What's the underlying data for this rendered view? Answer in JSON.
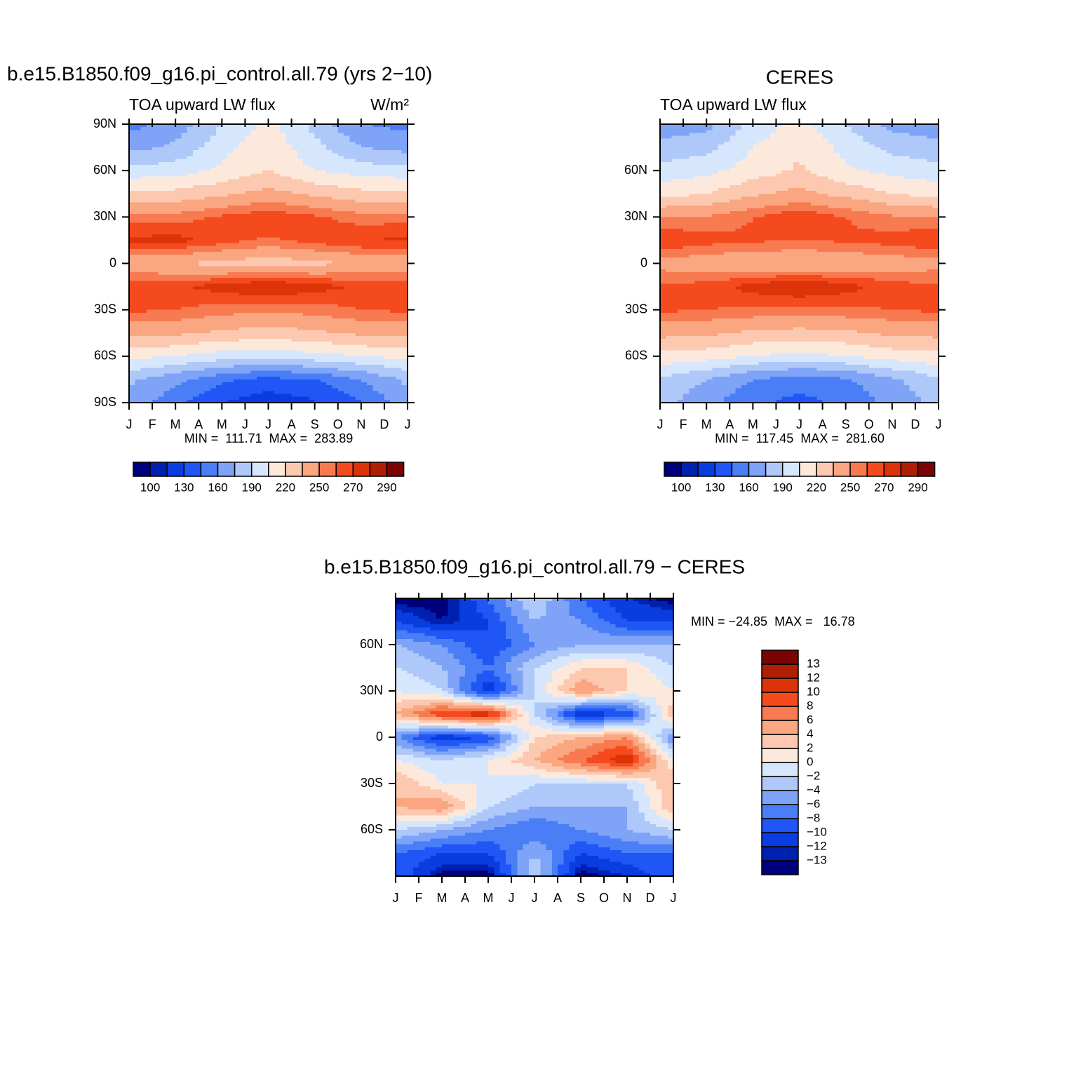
{
  "chart_data": [
    {
      "type": "contour",
      "title": "b.e15.B1850.f09_g16.pi_control.all.79 (yrs 2−10)",
      "subtitle": "TOA upward LW flux",
      "units": "W/m²",
      "stats": "MIN =  111.71  MAX =  283.89",
      "x": [
        0,
        2,
        4,
        6,
        8,
        10,
        12
      ],
      "xlim": [
        0,
        12
      ],
      "xticks": [
        {
          "value": 0,
          "label": "J"
        },
        {
          "value": 1,
          "label": "F"
        },
        {
          "value": 2,
          "label": "M"
        },
        {
          "value": 3,
          "label": "A"
        },
        {
          "value": 4,
          "label": "M"
        },
        {
          "value": 5,
          "label": "J"
        },
        {
          "value": 6,
          "label": "J"
        },
        {
          "value": 7,
          "label": "A"
        },
        {
          "value": 8,
          "label": "S"
        },
        {
          "value": 9,
          "label": "O"
        },
        {
          "value": 10,
          "label": "N"
        },
        {
          "value": 11,
          "label": "D"
        },
        {
          "value": 12,
          "label": "J"
        }
      ],
      "y": [
        90,
        75,
        60,
        45,
        30,
        15,
        0,
        -15,
        -30,
        -45,
        -60,
        -75,
        -90
      ],
      "ylim": [
        -90,
        90
      ],
      "yticks": [
        {
          "value": 90,
          "label": "90N"
        },
        {
          "value": 60,
          "label": "60N"
        },
        {
          "value": 30,
          "label": "30N"
        },
        0,
        {
          "value": -30,
          "label": "30S"
        },
        {
          "value": -60,
          "label": "60S"
        },
        {
          "value": -90,
          "label": "90S"
        }
      ],
      "z": [
        [
          155,
          165,
          190,
          210,
          185,
          160,
          155
        ],
        [
          170,
          178,
          200,
          215,
          195,
          175,
          170
        ],
        [
          195,
          198,
          208,
          220,
          205,
          198,
          195
        ],
        [
          225,
          225,
          232,
          240,
          232,
          225,
          225
        ],
        [
          255,
          255,
          262,
          268,
          262,
          255,
          255
        ],
        [
          272,
          275,
          265,
          258,
          265,
          270,
          272
        ],
        [
          240,
          235,
          230,
          228,
          230,
          238,
          240
        ],
        [
          265,
          268,
          275,
          282,
          275,
          268,
          265
        ],
        [
          262,
          260,
          255,
          252,
          255,
          260,
          262
        ],
        [
          240,
          238,
          232,
          228,
          232,
          238,
          240
        ],
        [
          210,
          205,
          198,
          195,
          200,
          205,
          210
        ],
        [
          178,
          165,
          148,
          140,
          145,
          160,
          178
        ],
        [
          170,
          150,
          130,
          120,
          128,
          145,
          170
        ]
      ],
      "levels": [
        100,
        115,
        130,
        145,
        160,
        175,
        190,
        205,
        220,
        235,
        250,
        260,
        270,
        280,
        290
      ],
      "colorbar_ticks": [
        100,
        130,
        160,
        190,
        220,
        250,
        270,
        290
      ],
      "colors": [
        "#00007f",
        "#0020b0",
        "#0a3de0",
        "#1f56f5",
        "#4a7ef7",
        "#7ea3f7",
        "#aec8f9",
        "#d6e6fc",
        "#fde9dc",
        "#fcc9b0",
        "#faa680",
        "#f87a50",
        "#f44a1e",
        "#dd3308",
        "#b01e03",
        "#7a0403"
      ]
    },
    {
      "type": "contour",
      "title": "CERES",
      "subtitle": "TOA upward LW flux",
      "stats": "MIN =  117.45  MAX =  281.60",
      "x": [
        0,
        2,
        4,
        6,
        8,
        10,
        12
      ],
      "xlim": [
        0,
        12
      ],
      "xticks": [
        {
          "value": 0,
          "label": "J"
        },
        {
          "value": 1,
          "label": "F"
        },
        {
          "value": 2,
          "label": "M"
        },
        {
          "value": 3,
          "label": "A"
        },
        {
          "value": 4,
          "label": "M"
        },
        {
          "value": 5,
          "label": "J"
        },
        {
          "value": 6,
          "label": "J"
        },
        {
          "value": 7,
          "label": "A"
        },
        {
          "value": 8,
          "label": "S"
        },
        {
          "value": 9,
          "label": "O"
        },
        {
          "value": 10,
          "label": "N"
        },
        {
          "value": 11,
          "label": "D"
        },
        {
          "value": 12,
          "label": "J"
        }
      ],
      "y": [
        90,
        75,
        60,
        45,
        30,
        15,
        0,
        -15,
        -30,
        -45,
        -60,
        -75,
        -90
      ],
      "ylim": [
        -90,
        90
      ],
      "yticks": [
        {
          "value": 60,
          "label": "60N"
        },
        {
          "value": 30,
          "label": "30N"
        },
        0,
        {
          "value": -30,
          "label": "30S"
        },
        {
          "value": -60,
          "label": "60S"
        }
      ],
      "z": [
        [
          165,
          170,
          195,
          210,
          190,
          170,
          165
        ],
        [
          180,
          185,
          205,
          218,
          200,
          185,
          180
        ],
        [
          195,
          200,
          212,
          222,
          208,
          200,
          195
        ],
        [
          215,
          220,
          232,
          240,
          230,
          220,
          215
        ],
        [
          250,
          250,
          260,
          268,
          260,
          252,
          250
        ],
        [
          270,
          265,
          262,
          260,
          262,
          265,
          270
        ],
        [
          245,
          240,
          238,
          235,
          238,
          242,
          245
        ],
        [
          262,
          265,
          275,
          282,
          275,
          265,
          262
        ],
        [
          262,
          260,
          258,
          255,
          258,
          260,
          262
        ],
        [
          240,
          238,
          232,
          230,
          232,
          238,
          240
        ],
        [
          215,
          212,
          205,
          200,
          205,
          212,
          215
        ],
        [
          188,
          175,
          160,
          152,
          158,
          172,
          188
        ],
        [
          180,
          165,
          148,
          140,
          148,
          165,
          180
        ]
      ],
      "levels": [
        100,
        115,
        130,
        145,
        160,
        175,
        190,
        205,
        220,
        235,
        250,
        260,
        270,
        280,
        290
      ],
      "colorbar_ticks": [
        100,
        130,
        160,
        190,
        220,
        250,
        270,
        290
      ],
      "colors": [
        "#00007f",
        "#0020b0",
        "#0a3de0",
        "#1f56f5",
        "#4a7ef7",
        "#7ea3f7",
        "#aec8f9",
        "#d6e6fc",
        "#fde9dc",
        "#fcc9b0",
        "#faa680",
        "#f87a50",
        "#f44a1e",
        "#dd3308",
        "#b01e03",
        "#7a0403"
      ]
    },
    {
      "type": "contour",
      "title": "b.e15.B1850.f09_g16.pi_control.all.79 − CERES",
      "stats": "MIN = −24.85  MAX =   16.78",
      "x": [
        0,
        2,
        4,
        6,
        8,
        10,
        12
      ],
      "xlim": [
        0,
        12
      ],
      "xticks": [
        {
          "value": 0,
          "label": "J"
        },
        {
          "value": 1,
          "label": "F"
        },
        {
          "value": 2,
          "label": "M"
        },
        {
          "value": 3,
          "label": "A"
        },
        {
          "value": 4,
          "label": "M"
        },
        {
          "value": 5,
          "label": "J"
        },
        {
          "value": 6,
          "label": "J"
        },
        {
          "value": 7,
          "label": "A"
        },
        {
          "value": 8,
          "label": "S"
        },
        {
          "value": 9,
          "label": "O"
        },
        {
          "value": 10,
          "label": "N"
        },
        {
          "value": 11,
          "label": "D"
        },
        {
          "value": 12,
          "label": "J"
        }
      ],
      "y": [
        90,
        75,
        60,
        45,
        30,
        15,
        0,
        -15,
        -30,
        -45,
        -60,
        -75,
        -90
      ],
      "ylim": [
        -90,
        90
      ],
      "yticks": [
        {
          "value": 60,
          "label": "60N"
        },
        {
          "value": 30,
          "label": "30N"
        },
        0,
        {
          "value": -30,
          "label": "30S"
        },
        {
          "value": -60,
          "label": "60S"
        }
      ],
      "z": [
        [
          -14,
          -14,
          -8,
          -2,
          -8,
          -12,
          -14
        ],
        [
          -10,
          -13,
          -10,
          -4,
          -6,
          -10,
          -10
        ],
        [
          -4,
          -6,
          -10,
          -6,
          -4,
          -4,
          -4
        ],
        [
          -2,
          -4,
          -8,
          -2,
          2,
          2,
          -2
        ],
        [
          0,
          -2,
          -12,
          -2,
          6,
          2,
          0
        ],
        [
          4,
          10,
          12,
          -2,
          -12,
          -10,
          4
        ],
        [
          -6,
          -12,
          -10,
          2,
          4,
          6,
          -6
        ],
        [
          0,
          -2,
          0,
          4,
          8,
          12,
          0
        ],
        [
          4,
          0,
          0,
          -2,
          -2,
          -2,
          4
        ],
        [
          4,
          6,
          -2,
          -4,
          -4,
          -4,
          4
        ],
        [
          -2,
          -4,
          -6,
          -8,
          -6,
          -4,
          -2
        ],
        [
          -8,
          -10,
          -10,
          -4,
          -10,
          -8,
          -8
        ],
        [
          -8,
          -14,
          -14,
          -2,
          -14,
          -12,
          -8
        ]
      ],
      "levels": [
        {
          "value": -13,
          "label": "−13"
        },
        {
          "value": -12,
          "label": "−12"
        },
        {
          "value": -10,
          "label": "−10"
        },
        {
          "value": -8,
          "label": "−8"
        },
        {
          "value": -6,
          "label": "−6"
        },
        {
          "value": -4,
          "label": "−4"
        },
        {
          "value": -2,
          "label": "−2"
        },
        0,
        2,
        4,
        6,
        8,
        10,
        12,
        13
      ],
      "colors": [
        "#00007f",
        "#0020b0",
        "#0a3de0",
        "#1f56f5",
        "#4a7ef7",
        "#7ea3f7",
        "#aec8f9",
        "#d6e6fc",
        "#fde9dc",
        "#fcc9b0",
        "#faa680",
        "#f87a50",
        "#f44a1e",
        "#dd3308",
        "#b01e03",
        "#7a0403"
      ]
    }
  ]
}
